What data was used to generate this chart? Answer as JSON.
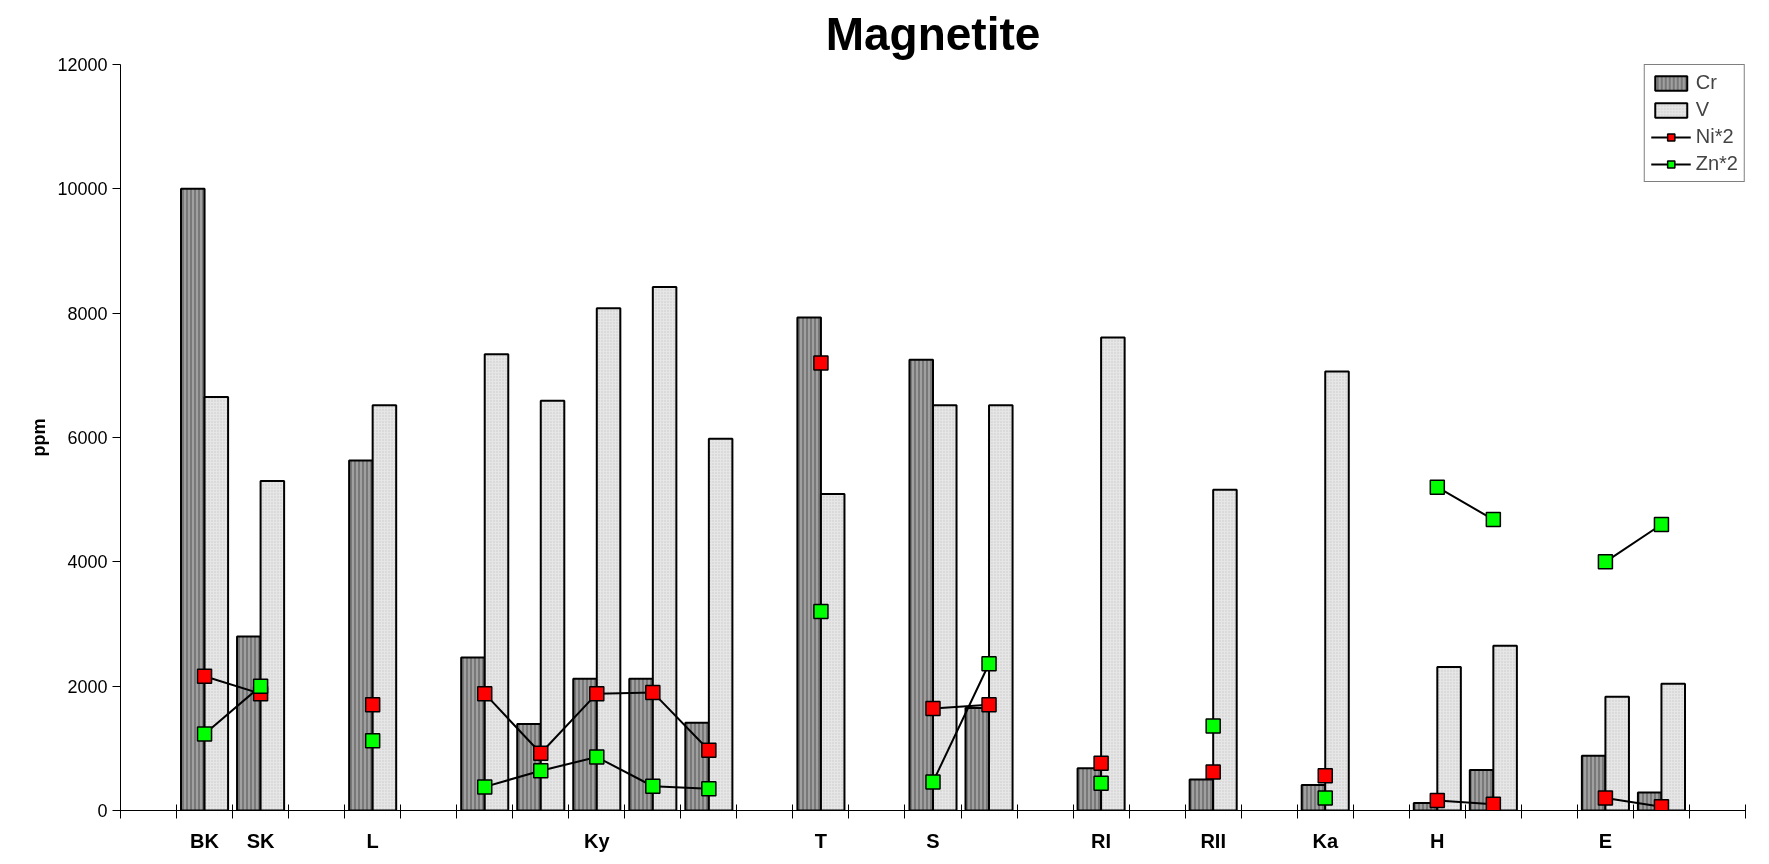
{
  "chart_data": {
    "type": "bar",
    "title": "Magnetite",
    "ylabel": "ppm",
    "categories": [
      null,
      "BK",
      "SK",
      null,
      "L",
      null,
      null,
      null,
      "Ky",
      null,
      null,
      null,
      "T",
      null,
      "S",
      null,
      null,
      "RI",
      null,
      "RII",
      null,
      "Ka",
      null,
      "H",
      null,
      null,
      "E",
      null,
      null
    ],
    "series": [
      {
        "name": "Cr",
        "color": "#a0a0a0",
        "values": [
          null,
          10000,
          2800,
          null,
          5630,
          null,
          2460,
          1390,
          2120,
          2120,
          1410,
          null,
          7930,
          null,
          7250,
          1650,
          null,
          680,
          null,
          500,
          null,
          410,
          null,
          120,
          650,
          null,
          880,
          290,
          null
        ]
      },
      {
        "name": "V",
        "color": "#e6e6e6",
        "values": [
          null,
          6650,
          5300,
          null,
          6520,
          null,
          7340,
          6590,
          8080,
          8420,
          5980,
          null,
          5090,
          null,
          6520,
          6520,
          null,
          7610,
          null,
          5160,
          null,
          7060,
          null,
          2310,
          2650,
          null,
          1830,
          2040,
          null
        ]
      },
      {
        "name": "Ni*2",
        "type": "line",
        "color": "#ff0000",
        "values": [
          null,
          2160,
          1880,
          null,
          1700,
          null,
          1880,
          920,
          1880,
          1900,
          970,
          null,
          7200,
          null,
          1640,
          1700,
          null,
          760,
          null,
          620,
          null,
          560,
          null,
          160,
          100,
          null,
          200,
          60,
          null
        ]
      },
      {
        "name": "Zn*2",
        "type": "line",
        "color": "#00ff00",
        "values": [
          null,
          1230,
          2000,
          null,
          1120,
          null,
          380,
          640,
          860,
          390,
          350,
          null,
          3200,
          null,
          460,
          2360,
          null,
          440,
          null,
          1360,
          null,
          200,
          null,
          5200,
          4680,
          null,
          4000,
          4600,
          null
        ]
      }
    ],
    "ylim": [
      0,
      12000
    ],
    "yticks": [
      0,
      2000,
      4000,
      6000,
      8000,
      10000,
      12000
    ],
    "marker": "square",
    "legend": "top right"
  }
}
